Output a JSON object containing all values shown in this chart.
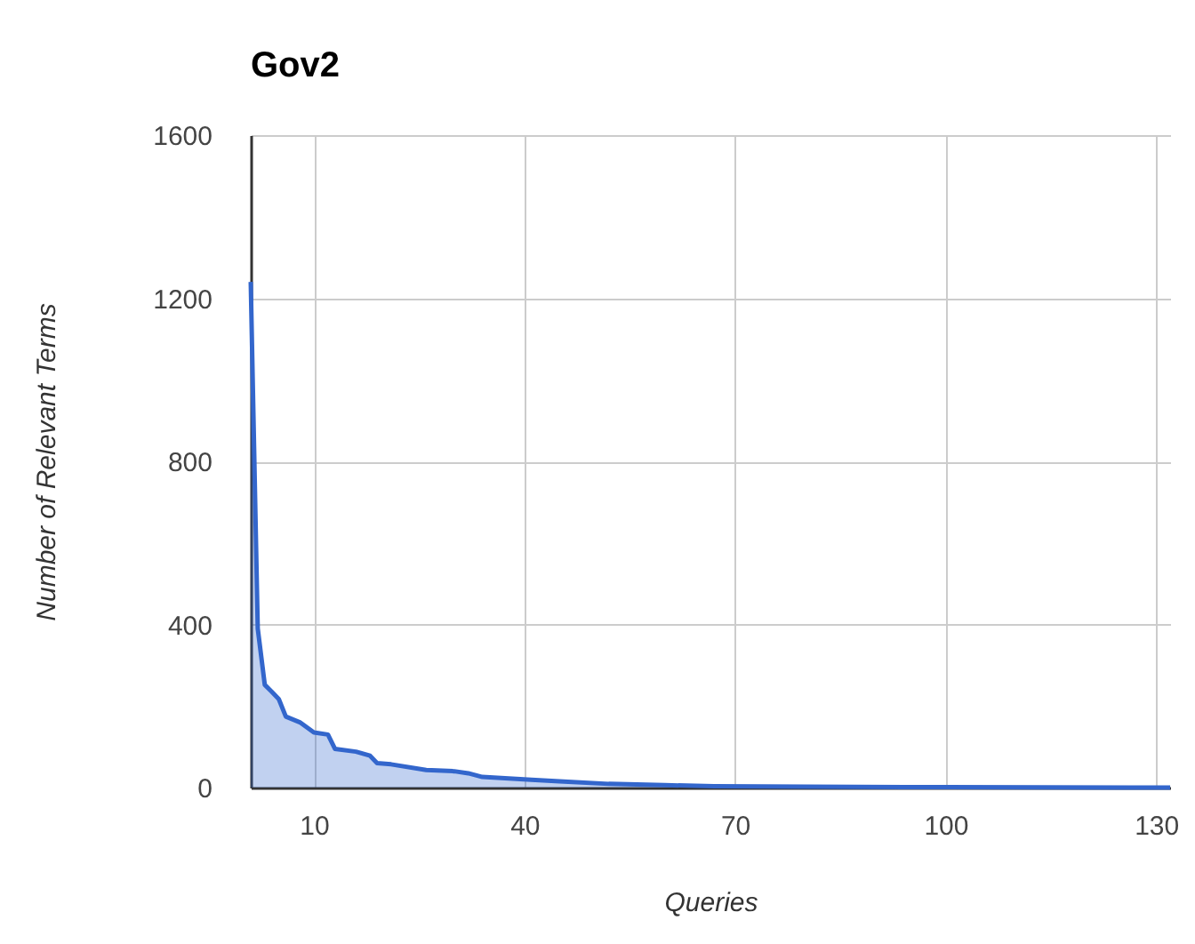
{
  "chart_data": {
    "type": "area",
    "title": "Gov2",
    "xlabel": "Queries",
    "ylabel": "Number of Relevant Terms",
    "x": [
      1,
      2,
      3,
      4,
      5,
      6,
      8,
      10,
      12,
      13,
      16,
      18,
      19,
      21,
      26,
      30,
      32,
      34,
      41,
      45,
      52,
      60,
      67,
      80,
      100,
      132
    ],
    "series": [
      {
        "color": "#3366cc",
        "values": [
          1240,
          390,
          252,
          235,
          217,
          174,
          160,
          135,
          130,
          95,
          88,
          78,
          60,
          57,
          43,
          40,
          35,
          26,
          19,
          15,
          9,
          6,
          3,
          2,
          1,
          0
        ]
      }
    ],
    "xlim": [
      1,
      132
    ],
    "xticks": [
      10,
      40,
      70,
      100,
      130
    ],
    "ylim": [
      0,
      1600
    ],
    "yticks": [
      0,
      400,
      800,
      1200,
      1600
    ],
    "grid": true
  }
}
